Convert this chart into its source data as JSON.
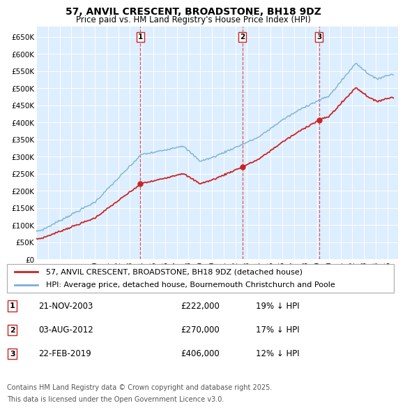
{
  "title": "57, ANVIL CRESCENT, BROADSTONE, BH18 9DZ",
  "subtitle": "Price paid vs. HM Land Registry's House Price Index (HPI)",
  "ylim": [
    0,
    680000
  ],
  "yticks": [
    0,
    50000,
    100000,
    150000,
    200000,
    250000,
    300000,
    350000,
    400000,
    450000,
    500000,
    550000,
    600000,
    650000
  ],
  "ytick_labels": [
    "£0",
    "£50K",
    "£100K",
    "£150K",
    "£200K",
    "£250K",
    "£300K",
    "£350K",
    "£400K",
    "£450K",
    "£500K",
    "£550K",
    "£600K",
    "£650K"
  ],
  "background_color": "#ffffff",
  "plot_bg_color": "#ddeeff",
  "grid_color": "#ffffff",
  "hpi_color": "#7ab0d4",
  "price_color": "#cc2222",
  "legend_label_price": "57, ANVIL CRESCENT, BROADSTONE, BH18 9DZ (detached house)",
  "legend_label_hpi": "HPI: Average price, detached house, Bournemouth Christchurch and Poole",
  "transactions": [
    {
      "num": 1,
      "date": "21-NOV-2003",
      "price": 222000,
      "year": 2003.9,
      "hpi_note": "19% ↓ HPI"
    },
    {
      "num": 2,
      "date": "03-AUG-2012",
      "price": 270000,
      "year": 2012.6,
      "hpi_note": "17% ↓ HPI"
    },
    {
      "num": 3,
      "date": "22-FEB-2019",
      "price": 406000,
      "year": 2019.15,
      "hpi_note": "12% ↓ HPI"
    }
  ],
  "footer_line1": "Contains HM Land Registry data © Crown copyright and database right 2025.",
  "footer_line2": "This data is licensed under the Open Government Licence v3.0.",
  "xlim_start": 1995.0,
  "xlim_end": 2025.9,
  "xtick_years": [
    1995,
    1996,
    1997,
    1998,
    1999,
    2000,
    2001,
    2002,
    2003,
    2004,
    2005,
    2006,
    2007,
    2008,
    2009,
    2010,
    2011,
    2012,
    2013,
    2014,
    2015,
    2016,
    2017,
    2018,
    2019,
    2020,
    2021,
    2022,
    2023,
    2024,
    2025
  ]
}
